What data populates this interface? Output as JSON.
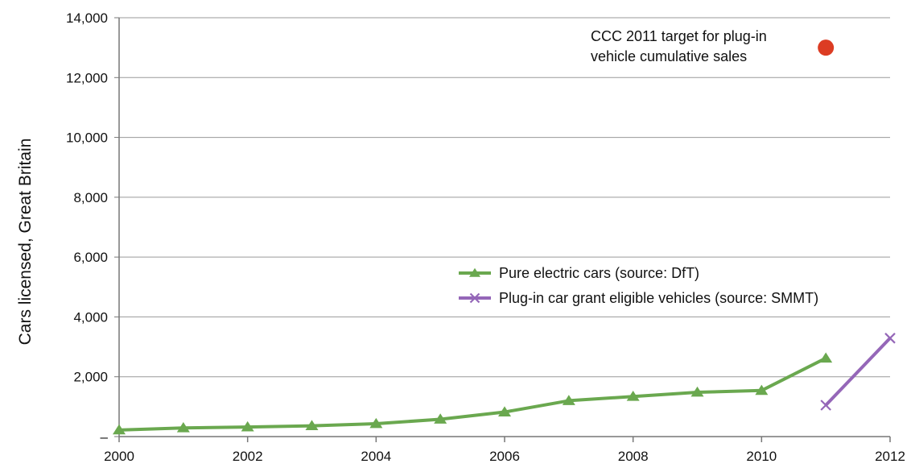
{
  "chart_data": {
    "type": "line",
    "title": "",
    "xlabel": "",
    "ylabel": "Cars licensed, Great Britain",
    "xlim": [
      2000,
      2012
    ],
    "ylim": [
      0,
      14000
    ],
    "x_ticks": [
      2000,
      2002,
      2004,
      2006,
      2008,
      2010,
      2012
    ],
    "x_tick_labels": [
      "2000",
      "2002",
      "2004",
      "2006",
      "2008",
      "2010",
      "2012"
    ],
    "y_ticks": [
      0,
      2000,
      4000,
      6000,
      8000,
      10000,
      12000,
      14000
    ],
    "y_tick_labels": [
      "–",
      "2,000",
      "4,000",
      "6,000",
      "8,000",
      "10,000",
      "12,000",
      "14,000"
    ],
    "grid": "horizontal",
    "legend_position": "right-middle",
    "series": [
      {
        "name": "Pure electric cars (source: DfT)",
        "color": "#6aa84f",
        "marker": "triangle",
        "x": [
          2000,
          2001,
          2002,
          2003,
          2004,
          2005,
          2006,
          2007,
          2008,
          2009,
          2010,
          2011
        ],
        "y": [
          220,
          290,
          320,
          360,
          430,
          580,
          820,
          1200,
          1340,
          1480,
          1540,
          2620
        ]
      },
      {
        "name": "Plug-in car grant eligible vehicles (source: SMMT)",
        "color": "#9567b8",
        "marker": "x",
        "x": [
          2011,
          2012
        ],
        "y": [
          1050,
          3290
        ]
      }
    ],
    "annotations": [
      {
        "text_lines": [
          "CCC 2011 target for plug-in",
          "vehicle cumulative sales"
        ],
        "x": 2011,
        "y": 13000,
        "marker": "circle",
        "color": "#dc3c23"
      }
    ]
  }
}
